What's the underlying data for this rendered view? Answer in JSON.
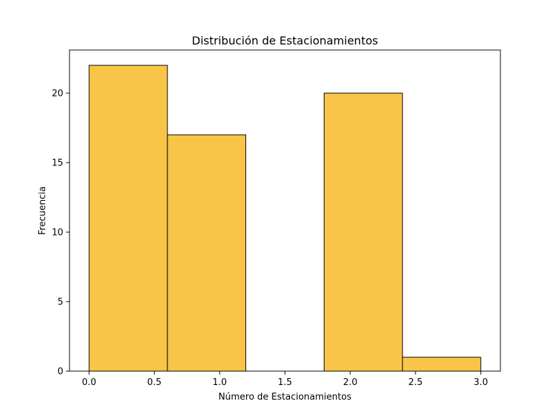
{
  "chart_data": {
    "type": "bar",
    "title": "Distribución de Estacionamientos",
    "xlabel": "Número de Estacionamientos",
    "ylabel": "Frecuencia",
    "bins": [
      {
        "x0": 0.0,
        "x1": 0.6,
        "count": 22
      },
      {
        "x0": 0.6,
        "x1": 1.2,
        "count": 17
      },
      {
        "x0": 1.2,
        "x1": 1.8,
        "count": 0
      },
      {
        "x0": 1.8,
        "x1": 2.4,
        "count": 20
      },
      {
        "x0": 2.4,
        "x1": 3.0,
        "count": 1
      }
    ],
    "xlim": [
      -0.15,
      3.15
    ],
    "ylim": [
      0,
      23.1
    ],
    "xticks": [
      "0.0",
      "0.5",
      "1.0",
      "1.5",
      "2.0",
      "2.5",
      "3.0"
    ],
    "yticks": [
      "0",
      "5",
      "10",
      "15",
      "20"
    ],
    "grid": false,
    "bar_color": "#F9C548",
    "edge_color": "#000000"
  }
}
